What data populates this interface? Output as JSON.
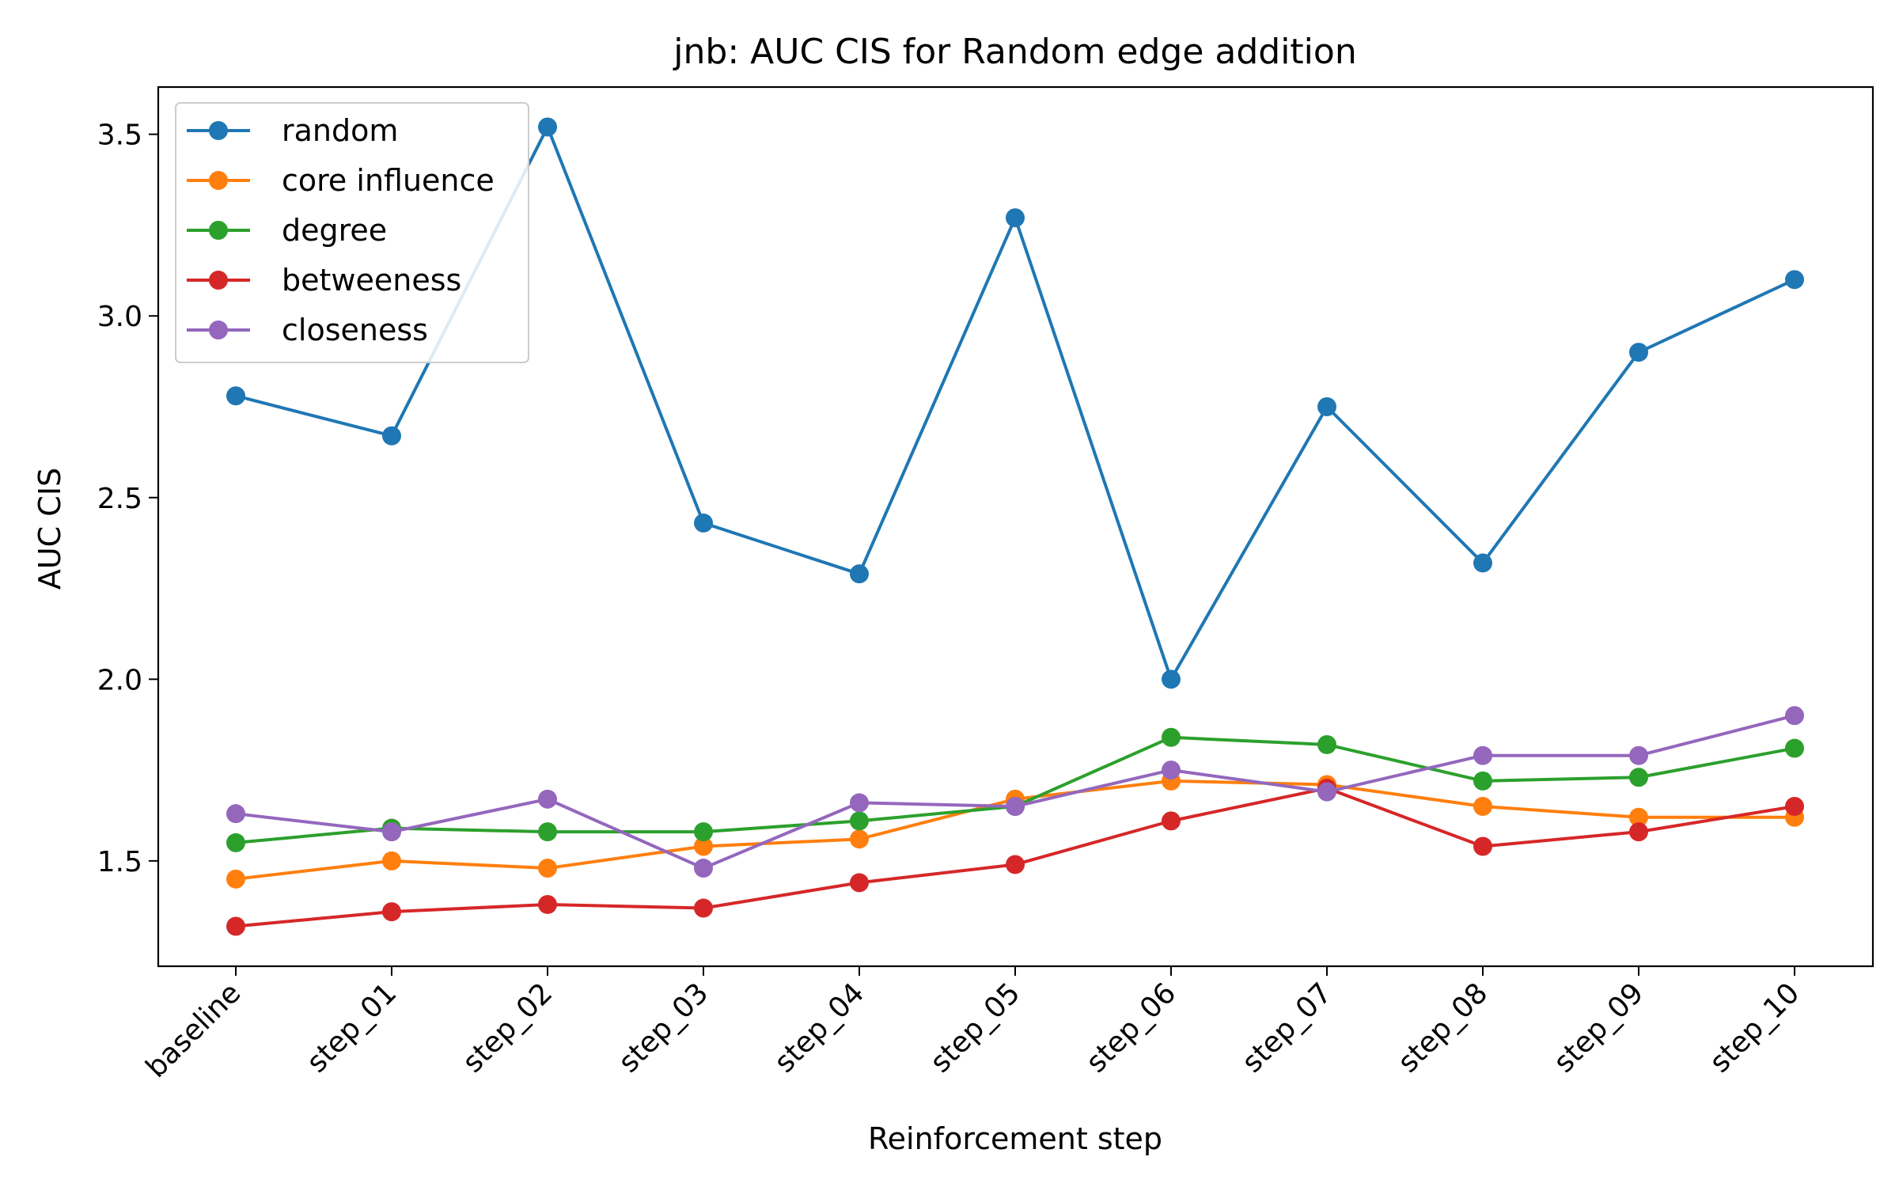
{
  "chart_data": {
    "type": "line",
    "title": "jnb: AUC CIS for Random edge addition",
    "xlabel": "Reinforcement step",
    "ylabel": "AUC CIS",
    "categories": [
      "baseline",
      "step_01",
      "step_02",
      "step_03",
      "step_04",
      "step_05",
      "step_06",
      "step_07",
      "step_08",
      "step_09",
      "step_10"
    ],
    "ylim": [
      1.21,
      3.63
    ],
    "yticks": [
      1.5,
      2.0,
      2.5,
      3.0,
      3.5
    ],
    "ytick_labels": [
      "1.5",
      "2.0",
      "2.5",
      "3.0",
      "3.5"
    ],
    "grid": false,
    "legend": "top-left",
    "marker": "circle",
    "series": [
      {
        "name": "random",
        "color": "#1f77b4",
        "values": [
          2.78,
          2.67,
          3.52,
          2.43,
          2.29,
          3.27,
          2.0,
          2.75,
          2.32,
          2.9,
          3.1
        ]
      },
      {
        "name": "core influence",
        "color": "#ff7f0e",
        "values": [
          1.45,
          1.5,
          1.48,
          1.54,
          1.56,
          1.67,
          1.72,
          1.71,
          1.65,
          1.62,
          1.62
        ]
      },
      {
        "name": "degree",
        "color": "#2ca02c",
        "values": [
          1.55,
          1.59,
          1.58,
          1.58,
          1.61,
          1.65,
          1.84,
          1.82,
          1.72,
          1.73,
          1.81
        ]
      },
      {
        "name": "betweeness",
        "color": "#d62728",
        "values": [
          1.32,
          1.36,
          1.38,
          1.37,
          1.44,
          1.49,
          1.61,
          1.7,
          1.54,
          1.58,
          1.65
        ]
      },
      {
        "name": "closeness",
        "color": "#9467bd",
        "values": [
          1.63,
          1.58,
          1.67,
          1.48,
          1.66,
          1.65,
          1.75,
          1.69,
          1.79,
          1.79,
          1.9
        ]
      }
    ]
  }
}
